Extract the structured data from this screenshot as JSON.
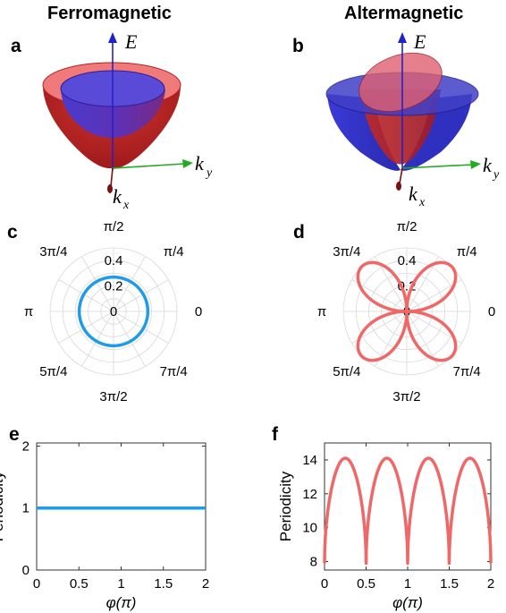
{
  "titles": {
    "left": "Ferromagnetic",
    "right": "Altermagnetic"
  },
  "panels": {
    "a": "a",
    "b": "b",
    "c": "c",
    "d": "d",
    "e": "e",
    "f": "f"
  },
  "axes3d": {
    "energy": "E",
    "ky": "k",
    "ky_sub": "y",
    "kx": "k",
    "kx_sub": "x"
  },
  "colors": {
    "spin_up": "#e84a4a",
    "spin_down": "#3a3ad8",
    "ferro_line": "#1e9ce8",
    "alter_line": "#f06767",
    "ky_axis": "#22aa22",
    "e_axis": "#2222cc",
    "kx_axis": "#7a1010"
  },
  "chart_data": [
    {
      "type": "polar",
      "panel": "c",
      "angle_labels": [
        "0",
        "π/4",
        "π/2",
        "3π/4",
        "π",
        "5π/4",
        "3π/2",
        "7π/4"
      ],
      "radial_ticks": [
        0,
        0.2,
        0.4
      ],
      "radial_tick_labels": [
        "0",
        "0.2",
        "0.4"
      ],
      "rlim": [
        0,
        0.5
      ],
      "series": [
        {
          "shape": "circle",
          "r": 0.27
        }
      ]
    },
    {
      "type": "polar",
      "panel": "d",
      "angle_labels": [
        "0",
        "π/4",
        "π/2",
        "3π/4",
        "π",
        "5π/4",
        "3π/2",
        "7π/4"
      ],
      "radial_ticks": [
        0,
        0.2,
        0.4
      ],
      "radial_tick_labels": [
        "0",
        "0.2",
        "0.4"
      ],
      "rlim": [
        0,
        0.5
      ],
      "series": [
        {
          "shape": "four-leaf",
          "r_max": 0.5,
          "lobes_at": [
            "π/4",
            "3π/4",
            "5π/4",
            "7π/4"
          ]
        }
      ]
    },
    {
      "type": "line",
      "panel": "e",
      "xlabel": "φ(π)",
      "ylabel": "Periodicity",
      "xticks": [
        "0",
        "0.5",
        "1",
        "1.5",
        "2"
      ],
      "yticks": [
        "0",
        "1",
        "2"
      ],
      "xlim": [
        0,
        2
      ],
      "ylim": [
        0,
        2.05
      ],
      "series": [
        {
          "x": [
            0,
            2
          ],
          "y": [
            1,
            1
          ]
        }
      ]
    },
    {
      "type": "line",
      "panel": "f",
      "xlabel": "φ(π)",
      "ylabel": "Periodicity",
      "xticks": [
        "0",
        "0.5",
        "1",
        "1.5",
        "2"
      ],
      "yticks": [
        "8",
        "10",
        "12",
        "14"
      ],
      "xlim": [
        0,
        2
      ],
      "ylim": [
        7.5,
        15
      ],
      "series": [
        {
          "shape": "arches",
          "min": 7.9,
          "max": 14.1,
          "period": 0.5
        }
      ]
    }
  ]
}
